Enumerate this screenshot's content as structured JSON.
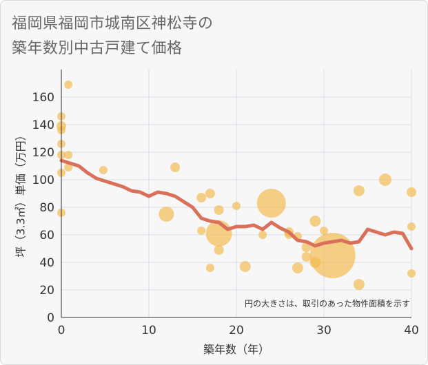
{
  "title": {
    "line1": "福岡県福岡市城南区神松寺の",
    "line2": "築年数別中古戸建て価格"
  },
  "chart_data": {
    "type": "scatter",
    "title": "福岡県福岡市城南区神松寺の築年数別中古戸建て価格",
    "xlabel": "築年数（年）",
    "ylabel": "坪（3.3㎡）単価（万円）",
    "xlim": [
      0,
      40
    ],
    "ylim": [
      0,
      180
    ],
    "xticks": [
      0,
      10,
      20,
      30,
      40
    ],
    "yticks": [
      0,
      20,
      40,
      60,
      80,
      100,
      120,
      140,
      160
    ],
    "grid": true,
    "note": "円の大きさは、取引のあった物件面積を示す",
    "colors": {
      "bubble": "#f5b849",
      "line": "#d9705a"
    },
    "bubbles": [
      {
        "x": 0,
        "y": 146,
        "size": 6
      },
      {
        "x": 0,
        "y": 139,
        "size": 7
      },
      {
        "x": 0,
        "y": 136,
        "size": 6
      },
      {
        "x": 0,
        "y": 126,
        "size": 6
      },
      {
        "x": 0,
        "y": 118,
        "size": 6
      },
      {
        "x": 0,
        "y": 105,
        "size": 6
      },
      {
        "x": 0,
        "y": 76,
        "size": 6
      },
      {
        "x": 0.8,
        "y": 169,
        "size": 6
      },
      {
        "x": 0.8,
        "y": 118,
        "size": 6
      },
      {
        "x": 0.8,
        "y": 109,
        "size": 6
      },
      {
        "x": 4.8,
        "y": 107,
        "size": 6
      },
      {
        "x": 12,
        "y": 75,
        "size": 11
      },
      {
        "x": 13,
        "y": 109,
        "size": 7
      },
      {
        "x": 16,
        "y": 87,
        "size": 7
      },
      {
        "x": 16,
        "y": 63,
        "size": 6
      },
      {
        "x": 17,
        "y": 90,
        "size": 7
      },
      {
        "x": 17,
        "y": 36,
        "size": 6
      },
      {
        "x": 18,
        "y": 78,
        "size": 7
      },
      {
        "x": 18,
        "y": 61,
        "size": 19
      },
      {
        "x": 18,
        "y": 49,
        "size": 7
      },
      {
        "x": 20,
        "y": 81,
        "size": 6
      },
      {
        "x": 21,
        "y": 37,
        "size": 8
      },
      {
        "x": 23,
        "y": 60,
        "size": 6
      },
      {
        "x": 24,
        "y": 83,
        "size": 21
      },
      {
        "x": 26,
        "y": 62,
        "size": 7
      },
      {
        "x": 26,
        "y": 60,
        "size": 6
      },
      {
        "x": 27,
        "y": 59,
        "size": 6
      },
      {
        "x": 27,
        "y": 36,
        "size": 8
      },
      {
        "x": 28,
        "y": 51,
        "size": 7
      },
      {
        "x": 28,
        "y": 44,
        "size": 7
      },
      {
        "x": 29,
        "y": 70,
        "size": 8
      },
      {
        "x": 29,
        "y": 40,
        "size": 8
      },
      {
        "x": 30,
        "y": 63,
        "size": 6
      },
      {
        "x": 31,
        "y": 45,
        "size": 33
      },
      {
        "x": 34,
        "y": 92,
        "size": 8
      },
      {
        "x": 34,
        "y": 24,
        "size": 8
      },
      {
        "x": 37,
        "y": 100,
        "size": 9
      },
      {
        "x": 40,
        "y": 91,
        "size": 7
      },
      {
        "x": 40,
        "y": 66,
        "size": 6
      },
      {
        "x": 40,
        "y": 32,
        "size": 6
      }
    ],
    "trend": {
      "x": [
        0,
        1,
        2,
        3,
        4,
        5,
        6,
        7,
        8,
        9,
        10,
        11,
        12,
        13,
        14,
        15,
        16,
        17,
        18,
        19,
        20,
        21,
        22,
        23,
        24,
        25,
        26,
        27,
        28,
        29,
        30,
        31,
        32,
        33,
        34,
        35,
        36,
        37,
        38,
        39,
        40
      ],
      "y": [
        114,
        112,
        110,
        105,
        101,
        99,
        97,
        95,
        92,
        91,
        88,
        91,
        90,
        88,
        84,
        80,
        72,
        70,
        69,
        64,
        66,
        66,
        67,
        64,
        69,
        65,
        62,
        56,
        55,
        52,
        54,
        55,
        56,
        54,
        55,
        64,
        62,
        60,
        62,
        61,
        50
      ]
    }
  }
}
